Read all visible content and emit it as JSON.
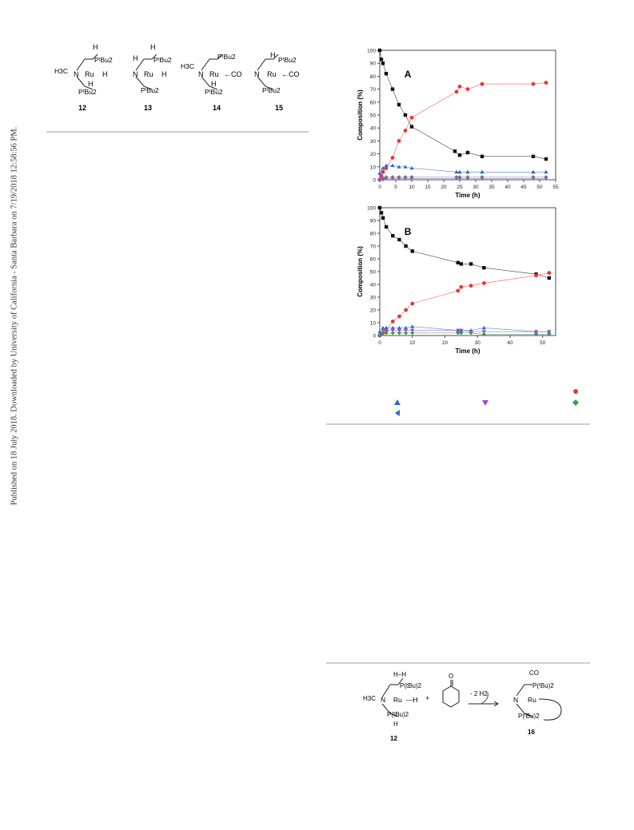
{
  "sidebar": {
    "text": "Published on 18 July 2018. Downloaded by University of California - Santa Barbara on 7/19/2018 12:58:56 PM."
  },
  "structures": {
    "labels": [
      "12",
      "13",
      "14",
      "15"
    ],
    "atoms": {
      "ru": "Ru",
      "n": "N",
      "h": "H",
      "h3c": "H3C",
      "ptbu2": "PᵗBu2",
      "co": "←CO"
    }
  },
  "colors": {
    "black_series": "#111111",
    "red_series": "#ee3333",
    "blue_series": "#2b6cc4",
    "purple_series": "#9b4fc8",
    "green_series": "#3d9a4a",
    "rule": "#cfcfcf"
  },
  "chart_data": [
    {
      "type": "line",
      "panel_label": "A",
      "xlabel": "Time (h)",
      "ylabel": "Composition (%)",
      "xlim": [
        0,
        55
      ],
      "ylim": [
        0,
        100
      ],
      "xticks": [
        0,
        5,
        10,
        15,
        20,
        25,
        30,
        35,
        40,
        45,
        50,
        55
      ],
      "yticks": [
        0,
        10,
        20,
        30,
        40,
        50,
        60,
        70,
        80,
        90,
        100
      ],
      "grid": false,
      "series": [
        {
          "marker": "square",
          "color": "#111111",
          "x": [
            0,
            0.5,
            1,
            2,
            4,
            6,
            8,
            10,
            23.5,
            25,
            27.5,
            32,
            48,
            52
          ],
          "y": [
            100,
            93,
            90,
            82,
            70,
            58,
            50,
            41,
            22,
            19,
            21,
            18,
            18,
            16
          ]
        },
        {
          "marker": "circle",
          "color": "#ee3333",
          "x": [
            0,
            0.5,
            1,
            2,
            4,
            6,
            8,
            10,
            24,
            25,
            27.5,
            32,
            48,
            52
          ],
          "y": [
            0,
            3,
            6,
            9,
            17,
            30,
            38,
            48,
            68,
            72,
            70,
            74,
            74,
            75
          ]
        },
        {
          "marker": "triangle-up",
          "color": "#2b6cc4",
          "x": [
            0,
            1,
            2,
            4,
            6,
            8,
            10,
            24,
            25,
            27.5,
            32,
            48,
            52
          ],
          "y": [
            5,
            9,
            11,
            11,
            10,
            10,
            9,
            6,
            6,
            6,
            6,
            6,
            6
          ]
        },
        {
          "marker": "diamond",
          "color": "#3d9a4a",
          "x": [
            0,
            1,
            2,
            4,
            6,
            8,
            10,
            24,
            25,
            27.5,
            32,
            48,
            52
          ],
          "y": [
            0,
            1,
            2,
            2,
            2,
            2,
            2,
            2,
            2,
            2,
            2,
            2,
            2
          ]
        },
        {
          "marker": "triangle-down",
          "color": "#9b4fc8",
          "x": [
            0,
            1,
            2,
            4,
            6,
            8,
            10,
            24,
            25,
            27.5,
            32,
            48,
            52
          ],
          "y": [
            0,
            0,
            1,
            1,
            1,
            1,
            1,
            1,
            1,
            1,
            1,
            1,
            1
          ]
        }
      ]
    },
    {
      "type": "line",
      "panel_label": "B",
      "xlabel": "Time (h)",
      "ylabel": "Composition (%)",
      "xlim": [
        0,
        54
      ],
      "ylim": [
        0,
        100
      ],
      "xticks": [
        0,
        10,
        20,
        30,
        40,
        50
      ],
      "yticks": [
        0,
        10,
        20,
        30,
        40,
        50,
        60,
        70,
        80,
        90,
        100
      ],
      "grid": false,
      "series": [
        {
          "marker": "square",
          "color": "#111111",
          "x": [
            0,
            0.5,
            1,
            2,
            4,
            6,
            8,
            10,
            24,
            25,
            28,
            32,
            48,
            52
          ],
          "y": [
            100,
            96,
            92,
            85,
            78,
            75,
            70,
            66,
            57,
            56,
            56,
            53,
            48,
            45
          ]
        },
        {
          "marker": "circle",
          "color": "#ee3333",
          "x": [
            0,
            0.5,
            1,
            2,
            4,
            6,
            8,
            10,
            24,
            25,
            28,
            32,
            48,
            52
          ],
          "y": [
            0,
            1,
            2,
            4,
            11,
            15,
            20,
            25,
            35,
            38,
            39,
            41,
            47,
            49
          ]
        },
        {
          "marker": "triangle-up",
          "color": "#2b6cc4",
          "x": [
            0,
            1,
            2,
            4,
            6,
            8,
            10,
            24,
            25,
            28,
            32,
            48,
            52
          ],
          "y": [
            3,
            6,
            6,
            6,
            6,
            6,
            7,
            4,
            4,
            4,
            6,
            3,
            3
          ]
        },
        {
          "marker": "triangle-down",
          "color": "#9b4fc8",
          "x": [
            0,
            1,
            2,
            4,
            6,
            8,
            10,
            24,
            25,
            28,
            32,
            48,
            52
          ],
          "y": [
            0,
            4,
            4,
            4,
            4,
            4,
            4,
            4,
            4,
            3,
            3,
            3,
            3
          ]
        },
        {
          "marker": "diamond",
          "color": "#3d9a4a",
          "x": [
            0,
            1,
            2,
            4,
            6,
            8,
            10,
            24,
            25,
            28,
            32,
            48,
            52
          ],
          "y": [
            0,
            2,
            2,
            2,
            2,
            2,
            2,
            2,
            2,
            2,
            1,
            1,
            1
          ]
        }
      ]
    }
  ],
  "scheme": {
    "label_left": "12",
    "label_right": "16",
    "reagent": "O",
    "arrow_text": "- 2 H2",
    "plus": "+",
    "atoms_left": {
      "hh": "H–H",
      "p1": "P(tBu)2",
      "h3c": "H3C",
      "n": "N",
      "ru": "Ru",
      "h": "—H",
      "p2": "P(tBu)2",
      "hbot": "H"
    },
    "atoms_right": {
      "co": "CO",
      "p1": "P(ᵗBu)2",
      "n": "N",
      "ru": "Ru",
      "p2": "P(ᵗBu)2"
    }
  }
}
